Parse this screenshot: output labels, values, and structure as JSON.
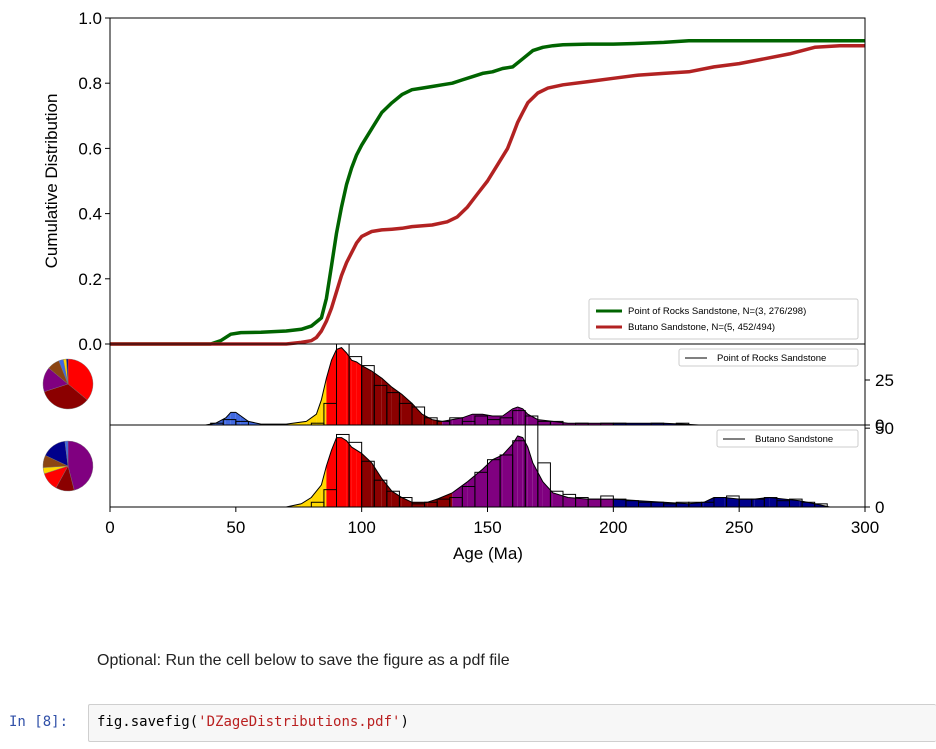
{
  "notebook": {
    "markdown_text": "Optional: Run the cell below to save the figure as a pdf file",
    "cell_prompt": "In [8]:",
    "code": {
      "prefix": "fig.savefig(",
      "string": "'DZageDistributions.pdf'",
      "suffix": ")"
    }
  },
  "colors": {
    "point_of_rocks": "#006400",
    "butano": "#b22222",
    "age_bins": [
      "#4169e1",
      "#ffd700",
      "#ff0000",
      "#8b0000",
      "#800080",
      "#00008b"
    ]
  },
  "chart_data": [
    {
      "type": "line",
      "title": "",
      "xlabel": "",
      "ylabel": "Cumulative Distribution",
      "xlim": [
        0,
        300
      ],
      "ylim": [
        0,
        1.0
      ],
      "yticks": [
        "0.0",
        "0.2",
        "0.4",
        "0.6",
        "0.8",
        "1.0"
      ],
      "legend_position": "lower-right",
      "series": [
        {
          "name": "Point of Rocks Sandstone, N=(3, 276/298)",
          "color": "#006400",
          "x": [
            0,
            40,
            44,
            48,
            52,
            60,
            70,
            76,
            80,
            84,
            86,
            88,
            90,
            92,
            94,
            96,
            98,
            100,
            104,
            108,
            112,
            116,
            120,
            124,
            128,
            132,
            136,
            140,
            144,
            148,
            152,
            156,
            160,
            164,
            168,
            172,
            176,
            180,
            190,
            200,
            210,
            220,
            230,
            240,
            260,
            280,
            300
          ],
          "y": [
            0.0,
            0.0,
            0.01,
            0.03,
            0.035,
            0.036,
            0.04,
            0.045,
            0.055,
            0.08,
            0.14,
            0.24,
            0.34,
            0.42,
            0.49,
            0.54,
            0.58,
            0.61,
            0.66,
            0.71,
            0.74,
            0.765,
            0.78,
            0.785,
            0.79,
            0.795,
            0.8,
            0.81,
            0.82,
            0.83,
            0.835,
            0.845,
            0.85,
            0.875,
            0.9,
            0.91,
            0.915,
            0.918,
            0.92,
            0.92,
            0.922,
            0.925,
            0.93,
            0.93,
            0.93,
            0.93,
            0.93
          ]
        },
        {
          "name": "Butano Sandstone, N=(5, 452/494)",
          "color": "#b22222",
          "x": [
            0,
            70,
            76,
            80,
            82,
            84,
            86,
            88,
            90,
            92,
            94,
            96,
            98,
            100,
            104,
            108,
            112,
            116,
            120,
            128,
            134,
            138,
            142,
            146,
            150,
            154,
            158,
            160,
            162,
            164,
            166,
            170,
            174,
            180,
            190,
            200,
            210,
            220,
            230,
            240,
            250,
            260,
            270,
            280,
            290,
            300
          ],
          "y": [
            0.0,
            0.0,
            0.005,
            0.01,
            0.02,
            0.04,
            0.07,
            0.11,
            0.16,
            0.21,
            0.25,
            0.28,
            0.31,
            0.33,
            0.345,
            0.35,
            0.352,
            0.355,
            0.36,
            0.365,
            0.375,
            0.39,
            0.42,
            0.46,
            0.5,
            0.55,
            0.6,
            0.64,
            0.68,
            0.71,
            0.74,
            0.77,
            0.785,
            0.795,
            0.805,
            0.815,
            0.825,
            0.83,
            0.835,
            0.85,
            0.86,
            0.875,
            0.89,
            0.91,
            0.915,
            0.915
          ]
        }
      ]
    },
    {
      "type": "bar",
      "legend": "Point of Rocks Sandstone",
      "xlim": [
        0,
        300
      ],
      "ylim": [
        0,
        45
      ],
      "yticks": [
        "0",
        "25"
      ],
      "bin_width": 5,
      "hist_bins": [
        40,
        45,
        50,
        55,
        60,
        65,
        70,
        75,
        80,
        85,
        90,
        95,
        100,
        105,
        110,
        115,
        120,
        125,
        130,
        135,
        140,
        145,
        150,
        155,
        160,
        165,
        170,
        175,
        180,
        185,
        190,
        195,
        200,
        205,
        210,
        215,
        220,
        225
      ],
      "hist_counts": [
        1,
        3,
        2,
        0,
        0,
        0,
        0,
        0,
        1,
        12,
        45,
        38,
        33,
        22,
        18,
        12,
        10,
        4,
        2,
        4,
        2,
        5,
        3,
        4,
        8,
        5,
        2,
        2,
        0,
        1,
        0,
        1,
        1,
        0,
        0,
        1,
        0,
        1
      ],
      "kde_x": [
        38,
        42,
        46,
        48,
        50,
        52,
        55,
        60,
        70,
        78,
        82,
        84,
        86,
        88,
        90,
        92,
        94,
        96,
        98,
        100,
        104,
        108,
        112,
        116,
        120,
        124,
        128,
        132,
        136,
        140,
        144,
        148,
        152,
        156,
        160,
        162,
        164,
        166,
        170,
        176,
        182,
        190,
        200,
        210,
        220,
        228,
        234
      ],
      "kde_y": [
        0,
        1,
        4,
        7,
        7,
        5,
        2,
        0.5,
        0.5,
        2,
        6,
        14,
        26,
        36,
        42,
        43,
        40,
        36,
        35,
        33,
        30,
        26,
        21,
        17,
        12,
        6,
        3,
        2,
        3,
        4,
        6,
        6,
        5,
        5,
        9,
        10,
        9,
        6,
        3,
        2,
        1,
        1,
        1,
        1,
        1,
        0.5,
        0
      ],
      "kde_colors": [
        "#4169e1",
        "#ffd700",
        "#ff0000",
        "#8b0000",
        "#800080",
        "#00008b"
      ],
      "kde_color_breaks": [
        66,
        86,
        100,
        134,
        200
      ],
      "pie_slices": [
        {
          "color": "#ff0000",
          "value": 36
        },
        {
          "color": "#8b0000",
          "value": 34
        },
        {
          "color": "#800080",
          "value": 16
        },
        {
          "color": "#8b4513",
          "value": 8
        },
        {
          "color": "#4169e1",
          "value": 3
        },
        {
          "color": "#ffd700",
          "value": 2
        },
        {
          "color": "#00008b",
          "value": 1
        }
      ]
    },
    {
      "type": "bar",
      "legend": "Butano Sandstone",
      "xlim": [
        0,
        300
      ],
      "xlabel": "Age (Ma)",
      "xticks": [
        "0",
        "50",
        "100",
        "150",
        "200",
        "250",
        "300"
      ],
      "ylim": [
        0,
        52
      ],
      "yticks": [
        "0",
        "50"
      ],
      "bin_width": 5,
      "hist_bins": [
        80,
        85,
        90,
        95,
        100,
        105,
        110,
        115,
        120,
        125,
        130,
        135,
        140,
        145,
        150,
        155,
        160,
        165,
        170,
        175,
        180,
        185,
        190,
        195,
        200,
        205,
        210,
        215,
        220,
        225,
        230,
        235,
        240,
        245,
        250,
        255,
        260,
        265,
        270,
        275,
        280
      ],
      "hist_counts": [
        3,
        11,
        46,
        41,
        29,
        17,
        10,
        6,
        2,
        3,
        5,
        6,
        13,
        22,
        30,
        33,
        42,
        52,
        28,
        10,
        8,
        6,
        5,
        7,
        5,
        4,
        3,
        3,
        2,
        3,
        3,
        3,
        6,
        7,
        5,
        5,
        6,
        4,
        5,
        3,
        2
      ],
      "kde_x": [
        70,
        76,
        80,
        84,
        86,
        88,
        90,
        92,
        94,
        96,
        98,
        100,
        104,
        108,
        112,
        116,
        120,
        126,
        130,
        136,
        142,
        148,
        152,
        156,
        160,
        162,
        164,
        166,
        168,
        172,
        176,
        182,
        190,
        200,
        210,
        220,
        230,
        236,
        240,
        244,
        250,
        256,
        262,
        268,
        274,
        280,
        286
      ],
      "kde_y": [
        0,
        2,
        6,
        14,
        26,
        36,
        44,
        44,
        42,
        38,
        36,
        34,
        28,
        18,
        10,
        6,
        3,
        3,
        5,
        9,
        16,
        24,
        30,
        33,
        40,
        45,
        44,
        38,
        28,
        16,
        9,
        6,
        5,
        5,
        4,
        3,
        2,
        3,
        6,
        6,
        5,
        5,
        6,
        5,
        4,
        2,
        0
      ],
      "kde_colors": [
        "#4169e1",
        "#ffd700",
        "#ff0000",
        "#8b0000",
        "#800080",
        "#00008b"
      ],
      "kde_color_breaks": [
        66,
        86,
        100,
        134,
        200
      ],
      "pie_slices": [
        {
          "color": "#800080",
          "value": 46
        },
        {
          "color": "#8b0000",
          "value": 12
        },
        {
          "color": "#ff0000",
          "value": 12
        },
        {
          "color": "#ffd700",
          "value": 4
        },
        {
          "color": "#8b4513",
          "value": 8
        },
        {
          "color": "#00008b",
          "value": 16
        },
        {
          "color": "#4169e1",
          "value": 2
        }
      ]
    }
  ]
}
